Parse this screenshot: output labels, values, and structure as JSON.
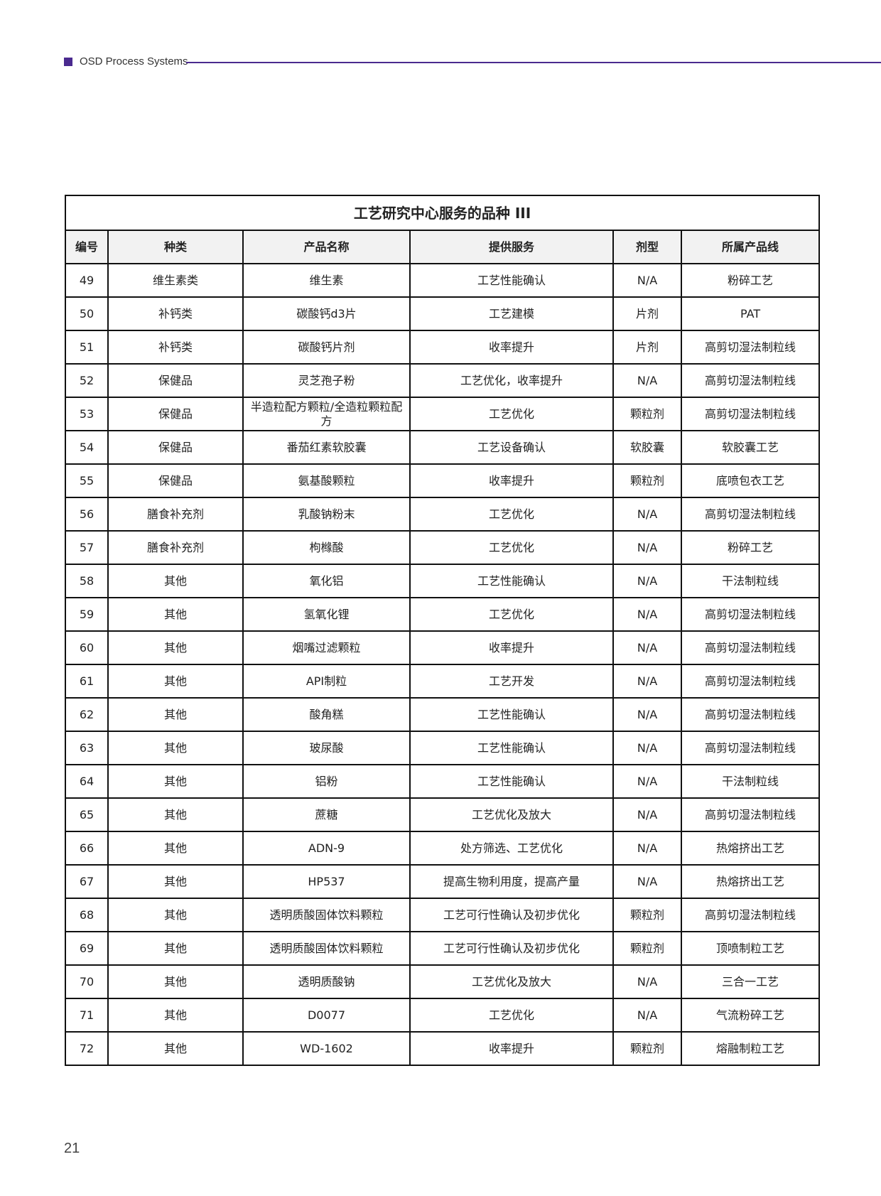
{
  "header": {
    "brand": "OSD Process Systems",
    "accent_color": "#4a2a8f"
  },
  "table": {
    "title": "工艺研究中心服务的品种 III",
    "columns": [
      "编号",
      "种类",
      "产品名称",
      "提供服务",
      "剂型",
      "所属产品线"
    ],
    "rows": [
      [
        "49",
        "维生素类",
        "维生素",
        "工艺性能确认",
        "N/A",
        "粉碎工艺"
      ],
      [
        "50",
        "补钙类",
        "碳酸钙d3片",
        "工艺建模",
        "片剂",
        "PAT"
      ],
      [
        "51",
        "补钙类",
        "碳酸钙片剂",
        "收率提升",
        "片剂",
        "高剪切湿法制粒线"
      ],
      [
        "52",
        "保健品",
        "灵芝孢子粉",
        "工艺优化，收率提升",
        "N/A",
        "高剪切湿法制粒线"
      ],
      [
        "53",
        "保健品",
        "半造粒配方颗粒/全造粒颗粒配方",
        "工艺优化",
        "颗粒剂",
        "高剪切湿法制粒线"
      ],
      [
        "54",
        "保健品",
        "番茄红素软胶囊",
        "工艺设备确认",
        "软胶囊",
        "软胶囊工艺"
      ],
      [
        "55",
        "保健品",
        "氨基酸颗粒",
        "收率提升",
        "颗粒剂",
        "底喷包衣工艺"
      ],
      [
        "56",
        "膳食补充剂",
        "乳酸钠粉末",
        "工艺优化",
        "N/A",
        "高剪切湿法制粒线"
      ],
      [
        "57",
        "膳食补充剂",
        "枸橼酸",
        "工艺优化",
        "N/A",
        "粉碎工艺"
      ],
      [
        "58",
        "其他",
        "氧化铝",
        "工艺性能确认",
        "N/A",
        "干法制粒线"
      ],
      [
        "59",
        "其他",
        "氢氧化锂",
        "工艺优化",
        "N/A",
        "高剪切湿法制粒线"
      ],
      [
        "60",
        "其他",
        "烟嘴过滤颗粒",
        "收率提升",
        "N/A",
        "高剪切湿法制粒线"
      ],
      [
        "61",
        "其他",
        "API制粒",
        "工艺开发",
        "N/A",
        "高剪切湿法制粒线"
      ],
      [
        "62",
        "其他",
        "酸角糕",
        "工艺性能确认",
        "N/A",
        "高剪切湿法制粒线"
      ],
      [
        "63",
        "其他",
        "玻尿酸",
        "工艺性能确认",
        "N/A",
        "高剪切湿法制粒线"
      ],
      [
        "64",
        "其他",
        "铝粉",
        "工艺性能确认",
        "N/A",
        "干法制粒线"
      ],
      [
        "65",
        "其他",
        "蔗糖",
        "工艺优化及放大",
        "N/A",
        "高剪切湿法制粒线"
      ],
      [
        "66",
        "其他",
        "ADN-9",
        "处方筛选、工艺优化",
        "N/A",
        "热熔挤出工艺"
      ],
      [
        "67",
        "其他",
        "HP537",
        "提高生物利用度，提高产量",
        "N/A",
        "热熔挤出工艺"
      ],
      [
        "68",
        "其他",
        "透明质酸固体饮料颗粒",
        "工艺可行性确认及初步优化",
        "颗粒剂",
        "高剪切湿法制粒线"
      ],
      [
        "69",
        "其他",
        "透明质酸固体饮料颗粒",
        "工艺可行性确认及初步优化",
        "颗粒剂",
        "顶喷制粒工艺"
      ],
      [
        "70",
        "其他",
        "透明质酸钠",
        "工艺优化及放大",
        "N/A",
        "三合一工艺"
      ],
      [
        "71",
        "其他",
        "D0077",
        "工艺优化",
        "N/A",
        "气流粉碎工艺"
      ],
      [
        "72",
        "其他",
        "WD-1602",
        "收率提升",
        "颗粒剂",
        "熔融制粒工艺"
      ]
    ]
  },
  "footer": {
    "page_number": "21"
  }
}
